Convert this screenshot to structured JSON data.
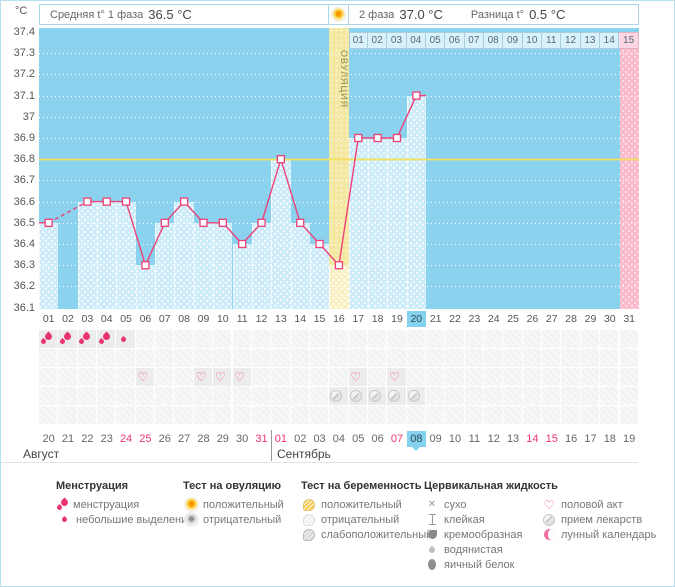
{
  "header": {
    "unit": "°C",
    "phase1_label": "Средняя t° 1 фаза",
    "phase1_value": "36.5 °C",
    "phase2_label": "2 фаза",
    "phase2_value": "37.0 °C",
    "diff_label": "Разница t°",
    "diff_value": "0.5 °C"
  },
  "chart_data": {
    "type": "line",
    "title": "График базальной температуры",
    "ylabel": "°C",
    "ylim": [
      36.1,
      37.4
    ],
    "ytick_step": 0.1,
    "yticks": [
      "37.4",
      "37.3",
      "37.2",
      "37.1",
      "37",
      "36.9",
      "36.8",
      "36.7",
      "36.6",
      "36.5",
      "36.4",
      "36.3",
      "36.2",
      "36.1"
    ],
    "x_days": [
      "01",
      "02",
      "03",
      "04",
      "05",
      "06",
      "07",
      "08",
      "09",
      "10",
      "11",
      "12",
      "13",
      "14",
      "15",
      "16",
      "17",
      "18",
      "19",
      "20",
      "21",
      "22",
      "23",
      "24",
      "25",
      "26",
      "27",
      "28",
      "29",
      "30",
      "31"
    ],
    "temps": [
      36.5,
      null,
      36.6,
      36.6,
      36.6,
      36.3,
      36.5,
      36.6,
      36.5,
      36.5,
      36.4,
      36.5,
      36.8,
      36.5,
      36.4,
      36.3,
      36.9,
      36.9,
      36.9,
      37.1,
      null,
      null,
      null,
      null,
      null,
      null,
      null,
      null,
      null,
      null,
      null
    ],
    "coverline": 36.8,
    "ovulation_day": 16,
    "ovulation_label": "ОВУЛЯЦИЯ",
    "highlight_day": 20,
    "period_expected_day": 31,
    "phase2_labels": [
      "01",
      "02",
      "03",
      "04",
      "05",
      "06",
      "07",
      "08",
      "09",
      "10",
      "11",
      "12",
      "13",
      "14",
      "15"
    ],
    "phase2_highlight": "15",
    "grid": "dotted-white"
  },
  "events": {
    "rows": [
      {
        "name": "menstruation",
        "icons": {
          "1": "drop-large",
          "2": "drop-large",
          "3": "drop-large",
          "4": "drop-large",
          "5": "drop-small"
        }
      },
      {
        "name": "tests",
        "icons": {}
      },
      {
        "name": "intercourse",
        "icons": {
          "6": "heart",
          "9": "heart",
          "10": "heart",
          "11": "heart",
          "17": "heart",
          "19": "heart"
        }
      },
      {
        "name": "medication",
        "icons": {
          "16": "pill",
          "17": "pill",
          "18": "pill",
          "19": "pill",
          "20": "pill"
        }
      },
      {
        "name": "extra",
        "icons": {}
      }
    ]
  },
  "calendar": {
    "months": [
      {
        "label": "Август",
        "days": [
          "20",
          "21",
          "22",
          "23",
          "24",
          "25",
          "26",
          "27",
          "28",
          "29",
          "30",
          "31"
        ],
        "weekend_days": [
          "24",
          "25",
          "31"
        ],
        "today": null
      },
      {
        "label": "Сентябрь",
        "days": [
          "01",
          "02",
          "03",
          "04",
          "05",
          "06",
          "07",
          "08",
          "09",
          "10",
          "11",
          "12",
          "13",
          "14",
          "15",
          "16",
          "17",
          "18",
          "19"
        ],
        "weekend_days": [
          "01",
          "07",
          "14",
          "15"
        ],
        "today": "08"
      }
    ]
  },
  "legend": {
    "groups": [
      {
        "title": "Менструация",
        "items": [
          {
            "icon": "drop-large",
            "label": "менструация"
          },
          {
            "icon": "drop-small",
            "label": "небольшие выделения"
          }
        ]
      },
      {
        "title": "Тест на овуляцию",
        "items": [
          {
            "icon": "ovu-positive",
            "label": "положительный"
          },
          {
            "icon": "ovu-negative",
            "label": "отрицательный"
          }
        ]
      },
      {
        "title": "Тест на беременность",
        "items": [
          {
            "icon": "preg-positive",
            "label": "положительный"
          },
          {
            "icon": "preg-negative",
            "label": "отрицательный"
          },
          {
            "icon": "preg-weak",
            "label": "слабоположительный"
          }
        ]
      },
      {
        "title": "Цервикальная жидкость",
        "items": [
          {
            "icon": "dry",
            "label": "сухо"
          },
          {
            "icon": "sticky",
            "label": "клейкая"
          },
          {
            "icon": "creamy",
            "label": "кремообразная"
          },
          {
            "icon": "watery",
            "label": "водянистая"
          },
          {
            "icon": "eggwhite",
            "label": "яичный белок"
          }
        ]
      },
      {
        "title": "",
        "items": [
          {
            "icon": "heart",
            "label": "половой акт"
          },
          {
            "icon": "pill",
            "label": "прием лекарств"
          },
          {
            "icon": "moon",
            "label": "лунный календарь"
          }
        ]
      }
    ]
  },
  "colors": {
    "accent_pink": "#ef4077",
    "menstruation_red": "#e8356d",
    "weekend_red": "#f1356e",
    "today_blue": "#85d2ef",
    "chart_bg": "#8ad2ee",
    "bar_fill": "#cdecf9",
    "ovulation_column": "#f4e7a0",
    "period_column": "#fbb9cc",
    "coverline_yellow": "#f2e05e",
    "border_blue": "#a9d6e8"
  }
}
